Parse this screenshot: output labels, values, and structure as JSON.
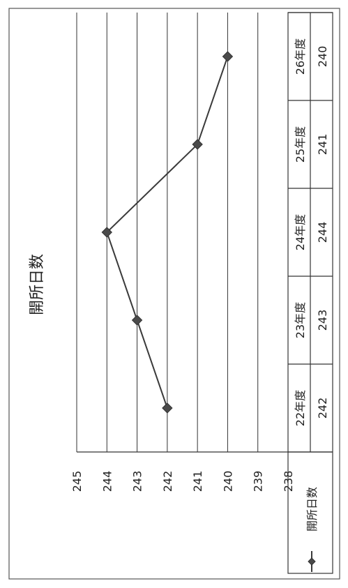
{
  "chart_data": {
    "type": "line",
    "title": "開所日数",
    "categories": [
      "22年度",
      "23年度",
      "24年度",
      "25年度",
      "26年度"
    ],
    "series": [
      {
        "name": "開所日数",
        "values": [
          242,
          243,
          244,
          241,
          240
        ]
      }
    ],
    "ylim": [
      238,
      245
    ],
    "yticks": [
      245,
      244,
      243,
      242,
      241,
      240,
      239,
      238
    ],
    "grid": true,
    "legend": "data-table-left",
    "orientation": "rotated-90",
    "colors": {
      "line": "#3a3a3a",
      "marker": "#4a4a4a"
    }
  }
}
